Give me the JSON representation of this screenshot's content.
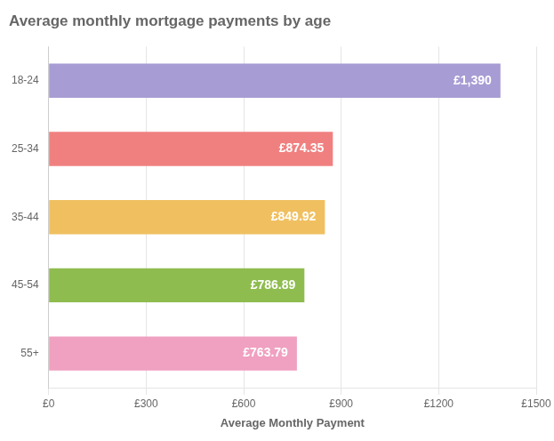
{
  "chart_data": {
    "type": "bar",
    "orientation": "horizontal",
    "title": "Average monthly mortgage payments by age",
    "categories": [
      "18-24",
      "25-34",
      "35-44",
      "45-54",
      "55+"
    ],
    "values": [
      1390,
      874.35,
      849.92,
      786.89,
      763.79
    ],
    "value_labels": [
      "£1,390",
      "£874.35",
      "£849.92",
      "£786.89",
      "£763.79"
    ],
    "data_labels": true,
    "colors": [
      "#a89cd4",
      "#f08080",
      "#f0c060",
      "#8fbc4f",
      "#f0a0c0"
    ],
    "xlabel": "Average Monthly Payment",
    "xlim": [
      0,
      1500
    ],
    "xticks": [
      {
        "value": 0,
        "label": "£0"
      },
      {
        "value": 300,
        "label": "£300"
      },
      {
        "value": 600,
        "label": "£600"
      },
      {
        "value": 900,
        "label": "£900"
      },
      {
        "value": 1200,
        "label": "£1200"
      },
      {
        "value": 1500,
        "label": "£1500"
      }
    ],
    "grid": true
  }
}
